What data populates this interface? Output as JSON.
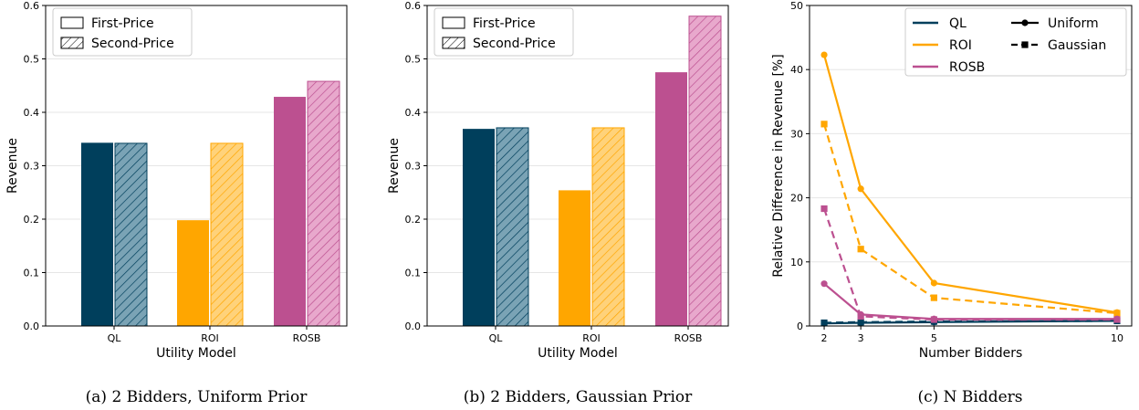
{
  "colors": {
    "QL": "#003f5c",
    "QL_light": "#7aa3b5",
    "ROI": "#ffa600",
    "ROI_light": "#ffd27a",
    "ROSB": "#bc5090",
    "ROSB_light": "#e8a8cc",
    "grid": "#e6e6e6"
  },
  "chart_data": [
    {
      "type": "bar",
      "caption": "(a) 2 Bidders, Uniform Prior",
      "title": "",
      "xlabel": "Utility Model",
      "ylabel": "Revenue",
      "categories": [
        "QL",
        "ROI",
        "ROSB"
      ],
      "series": [
        {
          "name": "First-Price",
          "values": [
            0.343,
            0.198,
            0.429
          ]
        },
        {
          "name": "Second-Price",
          "values": [
            0.342,
            0.342,
            0.458
          ]
        }
      ],
      "ylim": [
        0,
        0.6
      ],
      "yticks": [
        "0.0",
        "0.1",
        "0.2",
        "0.3",
        "0.4",
        "0.5",
        "0.6"
      ],
      "grid": "horizontal",
      "legend_position": "top-left"
    },
    {
      "type": "bar",
      "caption": "(b) 2 Bidders, Gaussian Prior",
      "title": "",
      "xlabel": "Utility Model",
      "ylabel": "Revenue",
      "categories": [
        "QL",
        "ROI",
        "ROSB"
      ],
      "series": [
        {
          "name": "First-Price",
          "values": [
            0.369,
            0.254,
            0.475
          ]
        },
        {
          "name": "Second-Price",
          "values": [
            0.371,
            0.371,
            0.58
          ]
        }
      ],
      "ylim": [
        0,
        0.6
      ],
      "yticks": [
        "0.0",
        "0.1",
        "0.2",
        "0.3",
        "0.4",
        "0.5",
        "0.6"
      ],
      "grid": "horizontal",
      "legend_position": "top-left"
    },
    {
      "type": "line",
      "caption": "(c) N Bidders",
      "title": "",
      "xlabel": "Number Bidders",
      "ylabel": "Relative Difference in Revenue [%]",
      "x": [
        2,
        3,
        5,
        10
      ],
      "xticks": [
        "2",
        "3",
        "5",
        "10"
      ],
      "yticks": [
        "0",
        "10",
        "20",
        "30",
        "40",
        "50"
      ],
      "xlim": [
        1.6,
        10.4
      ],
      "ylim": [
        0,
        50
      ],
      "grid": "horizontal",
      "legend_position": "top-right",
      "legend_models": [
        "QL",
        "ROI",
        "ROSB"
      ],
      "legend_priors": [
        "Uniform",
        "Gaussian"
      ],
      "series": [
        {
          "model": "QL",
          "prior": "Uniform",
          "values": [
            0.4,
            0.5,
            0.6,
            0.8
          ]
        },
        {
          "model": "QL",
          "prior": "Gaussian",
          "values": [
            0.5,
            0.6,
            0.7,
            0.8
          ]
        },
        {
          "model": "ROI",
          "prior": "Uniform",
          "values": [
            42.3,
            21.4,
            6.7,
            2.1
          ]
        },
        {
          "model": "ROI",
          "prior": "Gaussian",
          "values": [
            31.5,
            12.0,
            4.4,
            2.0
          ]
        },
        {
          "model": "ROSB",
          "prior": "Uniform",
          "values": [
            6.6,
            1.8,
            1.1,
            1.1
          ]
        },
        {
          "model": "ROSB",
          "prior": "Gaussian",
          "values": [
            18.3,
            1.5,
            1.0,
            1.0
          ]
        }
      ]
    }
  ]
}
